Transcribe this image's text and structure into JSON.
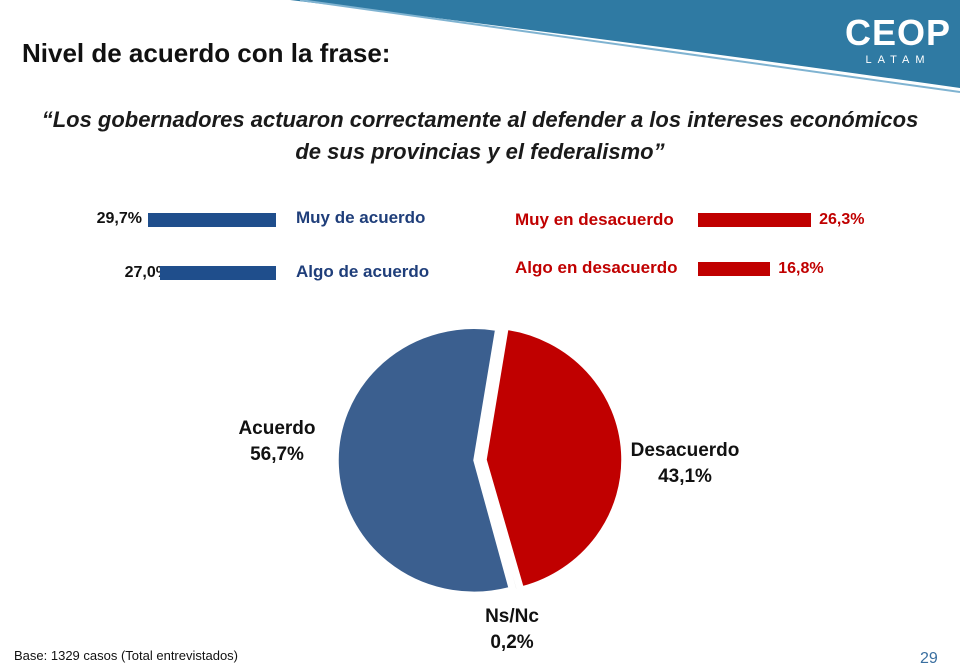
{
  "header": {
    "title": "Nivel de acuerdo con la frase:",
    "logo_main": "CEOP",
    "logo_sub": "LATAM",
    "accent_color": "#2f7aa3"
  },
  "quote": {
    "line1": "“Los gobernadores actuaron correctamente al defender a los intereses económicos",
    "line2": "de sus provincias y el federalismo”"
  },
  "breakdown": {
    "agree": [
      {
        "label": "Muy de acuerdo",
        "value": 29.7,
        "display": "29,7%"
      },
      {
        "label": "Algo de acuerdo",
        "value": 27.0,
        "display": "27,0%"
      }
    ],
    "disagree": [
      {
        "label": "Muy en desacuerdo",
        "value": 26.3,
        "display": "26,3%"
      },
      {
        "label": "Algo en desacuerdo",
        "value": 16.8,
        "display": "16,8%"
      }
    ],
    "agree_color": "#1f4e8c",
    "disagree_color": "#c00000"
  },
  "chart_data": {
    "type": "pie",
    "categories": [
      "Acuerdo",
      "Desacuerdo",
      "Ns/Nc"
    ],
    "values": [
      56.7,
      43.1,
      0.2
    ],
    "display": [
      "56,7%",
      "43,1%",
      "0,2%"
    ],
    "colors": [
      "#3b5f8f",
      "#c00000",
      "#d9d9d9"
    ]
  },
  "footer": {
    "note": "Base: 1329 casos (Total entrevistados)",
    "page_number": "29"
  }
}
